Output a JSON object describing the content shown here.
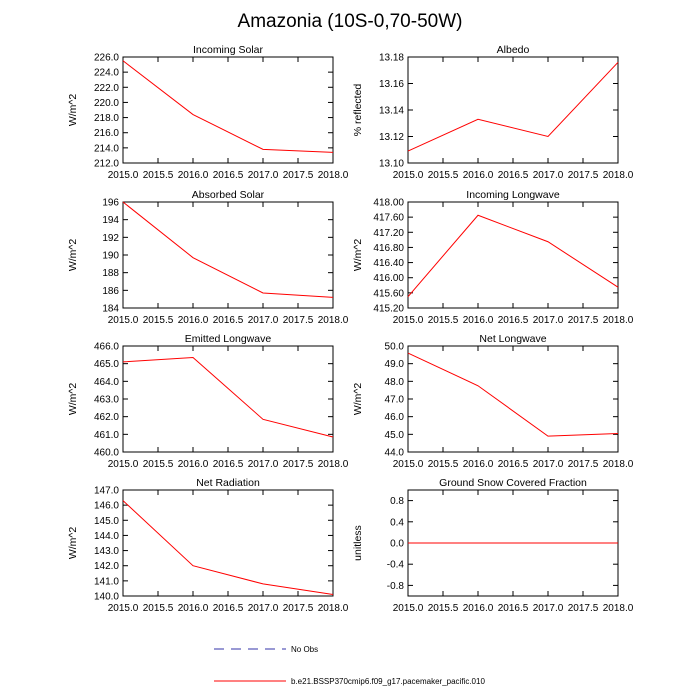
{
  "title": "Amazonia (10S-0,70-50W)",
  "legend": {
    "obs_label": "No Obs",
    "model_label": "b.e21.BSSP370cmip6.f09_g17.pacemaker_pacific.010",
    "obs_color": "#3333aa",
    "model_color": "#ff0000"
  },
  "chart_data": [
    {
      "type": "line",
      "title": "Incoming Solar",
      "xlabel": "",
      "ylabel": "W/m^2",
      "x": [
        2015,
        2016,
        2017,
        2018
      ],
      "series": [
        {
          "name": "b.e21.BSSP370cmip6.f09_g17.pacemaker_pacific.010",
          "values": [
            225.5,
            218.4,
            213.8,
            213.4
          ]
        }
      ],
      "xlim": [
        2015,
        2018
      ],
      "ylim": [
        212,
        226
      ],
      "xticks": [
        "2015.0",
        "2015.5",
        "2016.0",
        "2016.5",
        "2017.0",
        "2017.5",
        "2018.0"
      ],
      "yticks": [
        "212.0",
        "214.0",
        "216.0",
        "218.0",
        "220.0",
        "222.0",
        "224.0",
        "226.0"
      ]
    },
    {
      "type": "line",
      "title": "Albedo",
      "xlabel": "",
      "ylabel": "% reflected",
      "x": [
        2015,
        2016,
        2017,
        2018
      ],
      "series": [
        {
          "name": "b.e21.BSSP370cmip6.f09_g17.pacemaker_pacific.010",
          "values": [
            13.109,
            13.133,
            13.12,
            13.176
          ]
        }
      ],
      "xlim": [
        2015,
        2018
      ],
      "ylim": [
        13.1,
        13.18
      ],
      "xticks": [
        "2015.0",
        "2015.5",
        "2016.0",
        "2016.5",
        "2017.0",
        "2017.5",
        "2018.0"
      ],
      "yticks": [
        "13.10",
        "13.12",
        "13.14",
        "13.16",
        "13.18"
      ]
    },
    {
      "type": "line",
      "title": "Absorbed Solar",
      "xlabel": "",
      "ylabel": "W/m^2",
      "x": [
        2015,
        2016,
        2017,
        2018
      ],
      "series": [
        {
          "name": "b.e21.BSSP370cmip6.f09_g17.pacemaker_pacific.010",
          "values": [
            196.0,
            189.7,
            185.7,
            185.2
          ]
        }
      ],
      "xlim": [
        2015,
        2018
      ],
      "ylim": [
        184,
        196
      ],
      "xticks": [
        "2015.0",
        "2015.5",
        "2016.0",
        "2016.5",
        "2017.0",
        "2017.5",
        "2018.0"
      ],
      "yticks": [
        "184",
        "186",
        "188",
        "190",
        "192",
        "194",
        "196"
      ]
    },
    {
      "type": "line",
      "title": "Incoming Longwave",
      "xlabel": "",
      "ylabel": "W/m^2",
      "x": [
        2015,
        2016,
        2017,
        2018
      ],
      "series": [
        {
          "name": "b.e21.BSSP370cmip6.f09_g17.pacemaker_pacific.010",
          "values": [
            415.5,
            417.65,
            416.95,
            415.75
          ]
        }
      ],
      "xlim": [
        2015,
        2018
      ],
      "ylim": [
        415.2,
        418.0
      ],
      "xticks": [
        "2015.0",
        "2015.5",
        "2016.0",
        "2016.5",
        "2017.0",
        "2017.5",
        "2018.0"
      ],
      "yticks": [
        "415.20",
        "415.60",
        "416.00",
        "416.40",
        "416.80",
        "417.20",
        "417.60",
        "418.00"
      ]
    },
    {
      "type": "line",
      "title": "Emitted Longwave",
      "xlabel": "",
      "ylabel": "W/m^2",
      "x": [
        2015,
        2016,
        2017,
        2018
      ],
      "series": [
        {
          "name": "b.e21.BSSP370cmip6.f09_g17.pacemaker_pacific.010",
          "values": [
            465.1,
            465.35,
            461.85,
            460.85
          ]
        }
      ],
      "xlim": [
        2015,
        2018
      ],
      "ylim": [
        460,
        466
      ],
      "xticks": [
        "2015.0",
        "2015.5",
        "2016.0",
        "2016.5",
        "2017.0",
        "2017.5",
        "2018.0"
      ],
      "yticks": [
        "460.0",
        "461.0",
        "462.0",
        "463.0",
        "464.0",
        "465.0",
        "466.0"
      ]
    },
    {
      "type": "line",
      "title": "Net Longwave",
      "xlabel": "",
      "ylabel": "W/m^2",
      "x": [
        2015,
        2016,
        2017,
        2018
      ],
      "series": [
        {
          "name": "b.e21.BSSP370cmip6.f09_g17.pacemaker_pacific.010",
          "values": [
            49.6,
            47.75,
            44.9,
            45.05
          ]
        }
      ],
      "xlim": [
        2015,
        2018
      ],
      "ylim": [
        44,
        50
      ],
      "xticks": [
        "2015.0",
        "2015.5",
        "2016.0",
        "2016.5",
        "2017.0",
        "2017.5",
        "2018.0"
      ],
      "yticks": [
        "44.0",
        "45.0",
        "46.0",
        "47.0",
        "48.0",
        "49.0",
        "50.0"
      ]
    },
    {
      "type": "line",
      "title": "Net Radiation",
      "xlabel": "",
      "ylabel": "W/m^2",
      "x": [
        2015,
        2016,
        2017,
        2018
      ],
      "series": [
        {
          "name": "b.e21.BSSP370cmip6.f09_g17.pacemaker_pacific.010",
          "values": [
            146.3,
            142.0,
            140.8,
            140.1
          ]
        }
      ],
      "xlim": [
        2015,
        2018
      ],
      "ylim": [
        140,
        147
      ],
      "xticks": [
        "2015.0",
        "2015.5",
        "2016.0",
        "2016.5",
        "2017.0",
        "2017.5",
        "2018.0"
      ],
      "yticks": [
        "140.0",
        "141.0",
        "142.0",
        "143.0",
        "144.0",
        "145.0",
        "146.0",
        "147.0"
      ]
    },
    {
      "type": "line",
      "title": "Ground Snow Covered Fraction",
      "xlabel": "",
      "ylabel": "unitless",
      "x": [
        2015,
        2016,
        2017,
        2018
      ],
      "series": [
        {
          "name": "b.e21.BSSP370cmip6.f09_g17.pacemaker_pacific.010",
          "values": [
            0.0,
            0.0,
            0.0,
            0.0
          ]
        }
      ],
      "xlim": [
        2015,
        2018
      ],
      "ylim": [
        -1,
        1
      ],
      "xticks": [
        "2015.0",
        "2015.5",
        "2016.0",
        "2016.5",
        "2017.0",
        "2017.5",
        "2018.0"
      ],
      "yticks": [
        "-0.8",
        "-0.4",
        "0.0",
        "0.4",
        "0.8"
      ]
    }
  ]
}
